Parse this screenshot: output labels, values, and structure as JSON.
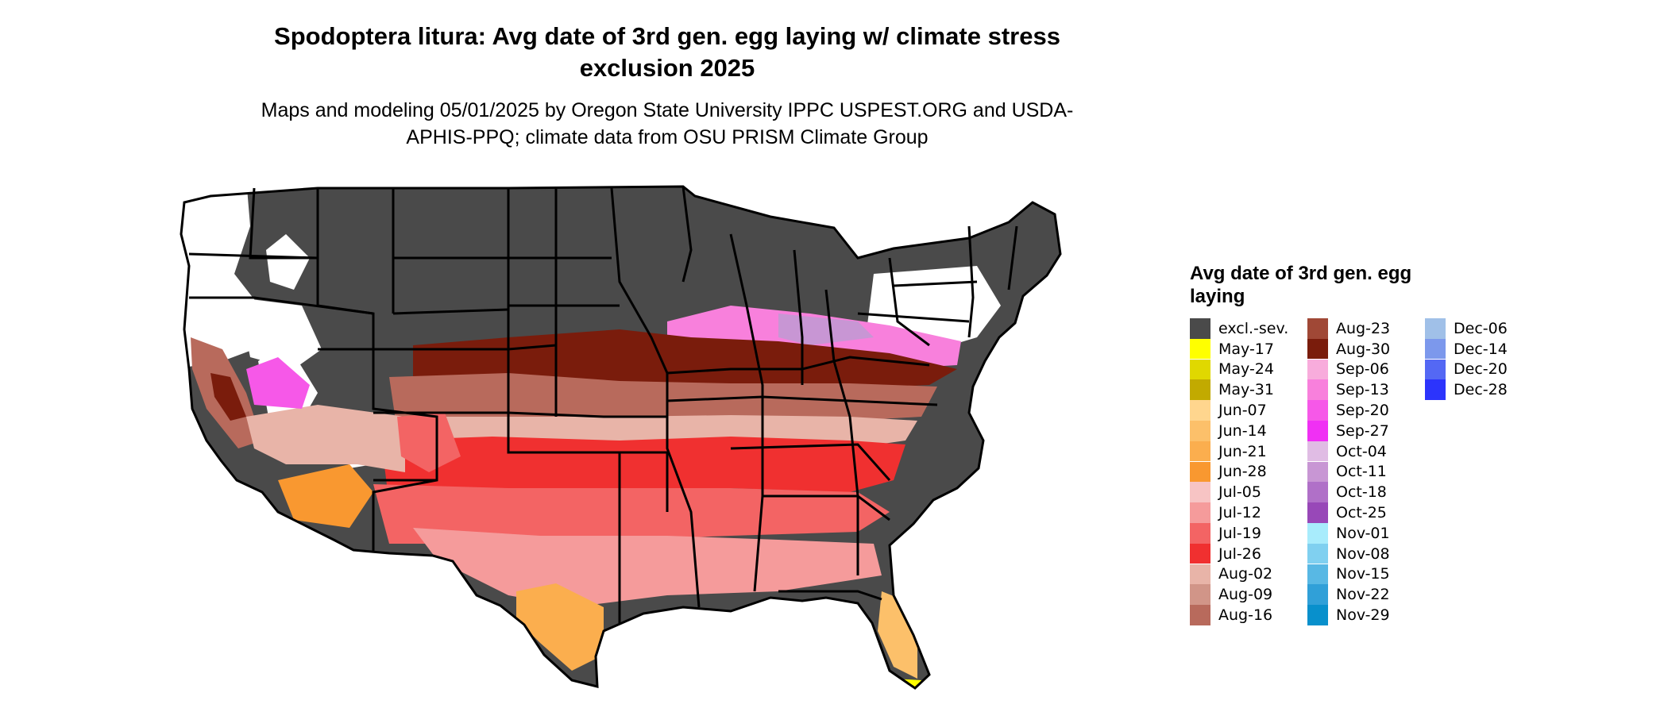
{
  "header": {
    "title": "Spodoptera litura: Avg date of 3rd gen. egg laying w/ climate stress exclusion 2025",
    "subtitle": "Maps and modeling 05/01/2025 by Oregon State University IPPC USPEST.ORG and USDA-APHIS-PPQ; climate data from OSU PRISM Climate Group"
  },
  "legend": {
    "title": "Avg date of 3rd gen. egg laying",
    "items": [
      {
        "label": "excl.-sev.",
        "color": "#4a4a4a"
      },
      {
        "label": "May-17",
        "color": "#ffff00"
      },
      {
        "label": "May-24",
        "color": "#e0d800"
      },
      {
        "label": "May-31",
        "color": "#c2aa00"
      },
      {
        "label": "Jun-07",
        "color": "#ffd68e"
      },
      {
        "label": "Jun-14",
        "color": "#fcc06a"
      },
      {
        "label": "Jun-21",
        "color": "#fbae4e"
      },
      {
        "label": "Jun-28",
        "color": "#f99830"
      },
      {
        "label": "Jul-05",
        "color": "#f7c4c4"
      },
      {
        "label": "Jul-12",
        "color": "#f59b9b"
      },
      {
        "label": "Jul-19",
        "color": "#f36464"
      },
      {
        "label": "Jul-26",
        "color": "#f03030"
      },
      {
        "label": "Aug-02",
        "color": "#e8b4a8"
      },
      {
        "label": "Aug-09",
        "color": "#d19588"
      },
      {
        "label": "Aug-16",
        "color": "#b86a5c"
      },
      {
        "label": "Aug-23",
        "color": "#a04836"
      },
      {
        "label": "Aug-30",
        "color": "#7a1c0c"
      },
      {
        "label": "Sep-06",
        "color": "#f8acdc"
      },
      {
        "label": "Sep-13",
        "color": "#f880dc"
      },
      {
        "label": "Sep-20",
        "color": "#f658e8"
      },
      {
        "label": "Sep-27",
        "color": "#f030f4"
      },
      {
        "label": "Oct-04",
        "color": "#e0bce4"
      },
      {
        "label": "Oct-11",
        "color": "#c896d4"
      },
      {
        "label": "Oct-18",
        "color": "#b070c8"
      },
      {
        "label": "Oct-25",
        "color": "#9848b8"
      },
      {
        "label": "Nov-01",
        "color": "#a8ecfc"
      },
      {
        "label": "Nov-08",
        "color": "#80d0f0"
      },
      {
        "label": "Nov-15",
        "color": "#58b8e4"
      },
      {
        "label": "Nov-22",
        "color": "#30a0d8"
      },
      {
        "label": "Nov-29",
        "color": "#0890cc"
      },
      {
        "label": "Dec-06",
        "color": "#a0c0e8"
      },
      {
        "label": "Dec-14",
        "color": "#7c98ec"
      },
      {
        "label": "Dec-20",
        "color": "#5468f4"
      },
      {
        "label": "Dec-28",
        "color": "#2c34fc"
      }
    ]
  },
  "map": {
    "region": "contiguous-us",
    "colors": {
      "excluded": "#4a4a4a",
      "no_data": "#ffffff",
      "border": "#000000"
    }
  }
}
